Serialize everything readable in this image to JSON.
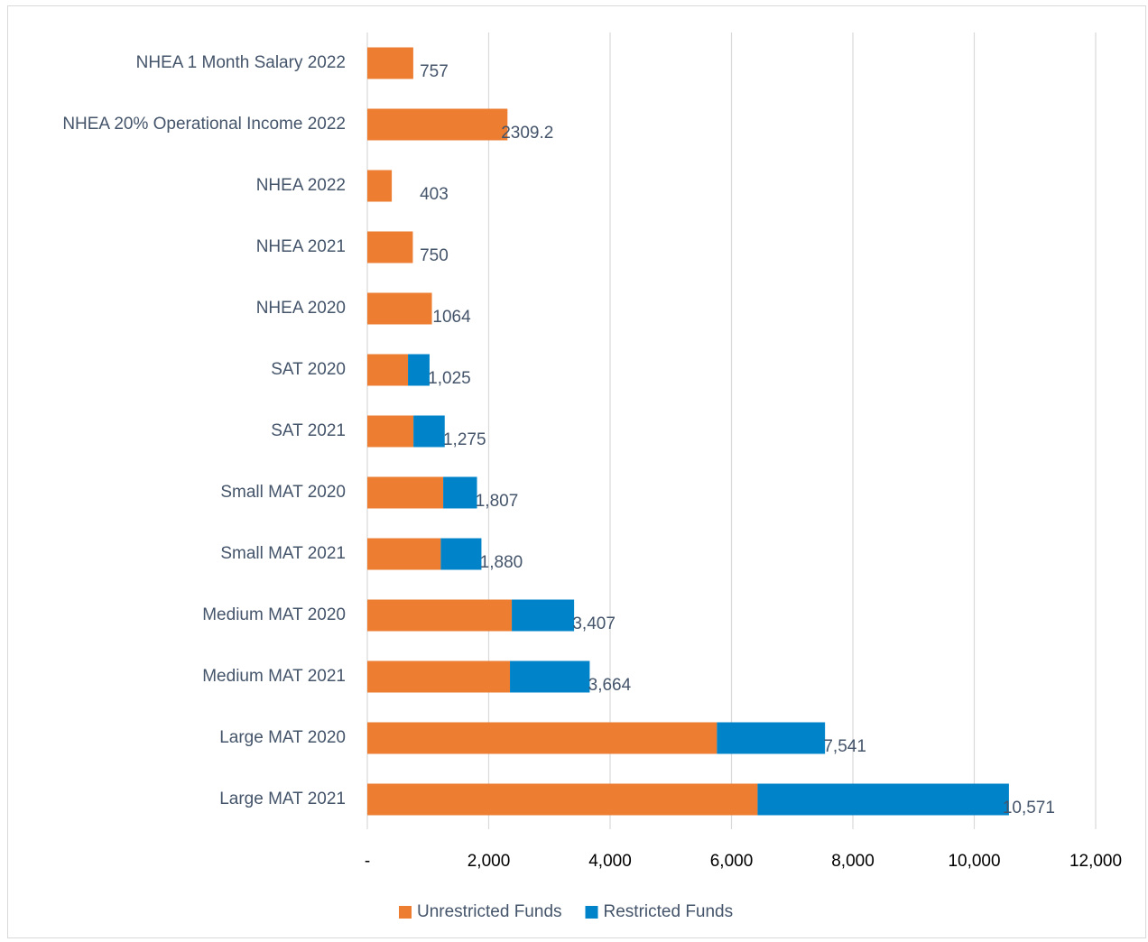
{
  "chart_data": {
    "type": "bar",
    "orientation": "horizontal",
    "stacked": true,
    "categories": [
      "NHEA 1 Month Salary 2022",
      "NHEA 20% Operational Income 2022",
      "NHEA 2022",
      "NHEA 2021",
      "NHEA 2020",
      "SAT 2020",
      "SAT 2021",
      "Small MAT 2020",
      "Small MAT 2021",
      "Medium MAT 2020",
      "Medium MAT 2021",
      "Large MAT 2020",
      "Large MAT 2021"
    ],
    "series": [
      {
        "name": "Unrestricted Funds",
        "color": "#ed7d31",
        "values": [
          757,
          2309.2,
          403,
          750,
          1064,
          670,
          760,
          1250,
          1210,
          2380,
          2350,
          5760,
          6430
        ]
      },
      {
        "name": "Restricted Funds",
        "color": "#0083c8",
        "values": [
          0,
          0,
          0,
          0,
          0,
          355,
          515,
          557,
          670,
          1027,
          1314,
          1781,
          4141
        ]
      }
    ],
    "data_labels": [
      "757",
      "2309.2",
      "403",
      "750",
      "1064",
      "1,025",
      "1,275",
      "1,807",
      "1,880",
      "3,407",
      "3,664",
      "7,541",
      "10,571"
    ],
    "x_ticks": [
      "-",
      "2,000",
      "4,000",
      "6,000",
      "8,000",
      "10,000",
      "12,000"
    ],
    "xlim": [
      0,
      12000
    ],
    "grid": true,
    "legend": "bottom",
    "title": "",
    "xlabel": "",
    "ylabel": ""
  }
}
